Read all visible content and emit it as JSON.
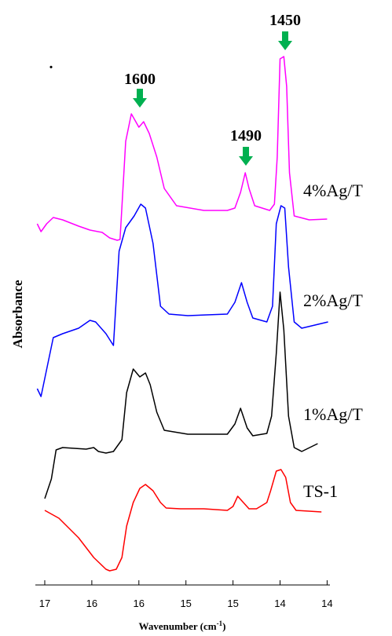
{
  "chart_data": {
    "type": "line",
    "ylabel": "Absorbance",
    "xlabel": {
      "text": "Wavenumber (cm",
      "sup": "-1",
      "end": ")"
    },
    "xlim": [
      17.1,
      13.97
    ],
    "ylim": [
      0,
      141
    ],
    "xticks": [
      17,
      {
        "value": 16.5,
        "label": "16"
      },
      16,
      {
        "value": 15.5,
        "label": "15"
      },
      15,
      {
        "value": 14.5,
        "label": "14"
      },
      14
    ],
    "annotations": [
      ".",
      "1600",
      "1490",
      "1450"
    ],
    "annotation_color": "#00b050",
    "series": [
      {
        "name": "4%Ag/T",
        "color": "#ff00ff",
        "x": [
          17.08,
          17.04,
          16.98,
          16.91,
          16.81,
          16.64,
          16.52,
          16.39,
          16.31,
          16.23,
          16.2,
          16.14,
          16.08,
          16.0,
          15.95,
          15.89,
          15.81,
          15.73,
          15.6,
          15.31,
          15.06,
          14.98,
          14.92,
          14.87,
          14.83,
          14.77,
          14.61,
          14.56,
          14.53,
          14.5,
          14.46,
          14.43,
          14.4,
          14.35,
          14.19,
          14.0
        ],
        "values": [
          92,
          90,
          92,
          93.6,
          93,
          91.4,
          90.4,
          89.8,
          88.4,
          87.8,
          88,
          113,
          120,
          116.6,
          118,
          115,
          109,
          101,
          96.6,
          95.4,
          95.4,
          96,
          100,
          105,
          101,
          96.6,
          95.4,
          97,
          109,
          134,
          134.6,
          127,
          105,
          94,
          93,
          93.2
        ]
      },
      {
        "name": "2%Ag/T",
        "color": "#0000ff",
        "x": [
          17.08,
          17.04,
          16.91,
          16.81,
          16.64,
          16.52,
          16.46,
          16.35,
          16.27,
          16.21,
          16.14,
          16.05,
          15.98,
          15.93,
          15.85,
          15.77,
          15.68,
          15.48,
          15.06,
          14.98,
          14.91,
          14.85,
          14.79,
          14.64,
          14.58,
          14.54,
          14.49,
          14.45,
          14.41,
          14.35,
          14.27,
          13.99
        ],
        "values": [
          50,
          48,
          63,
          64,
          65.4,
          67.4,
          67,
          64,
          61,
          85,
          91,
          94,
          97,
          96,
          87,
          71,
          69,
          68.6,
          69,
          72,
          77,
          72,
          68,
          67,
          71,
          92,
          96.6,
          96,
          81,
          67,
          65.4,
          67
        ]
      },
      {
        "name": "1%Ag/T",
        "color": "#000000",
        "x": [
          17.0,
          16.93,
          16.88,
          16.81,
          16.56,
          16.48,
          16.43,
          16.35,
          16.27,
          16.18,
          16.13,
          16.06,
          15.99,
          15.93,
          15.88,
          15.81,
          15.73,
          15.48,
          15.06,
          14.98,
          14.92,
          14.85,
          14.79,
          14.64,
          14.59,
          14.54,
          14.5,
          14.46,
          14.41,
          14.35,
          14.27,
          14.1
        ],
        "values": [
          22,
          27,
          34.4,
          35,
          34.6,
          35,
          34,
          33.6,
          34,
          37,
          49,
          55,
          53,
          54,
          51,
          44,
          39.4,
          38.4,
          38.4,
          41,
          45,
          40,
          38,
          38.6,
          43,
          59,
          74.6,
          65,
          43,
          35,
          34,
          36
        ]
      },
      {
        "name": "TS-1",
        "color": "#ff0000",
        "x": [
          17.0,
          16.85,
          16.64,
          16.48,
          16.35,
          16.31,
          16.24,
          16.18,
          16.13,
          16.06,
          15.99,
          15.93,
          15.85,
          15.77,
          15.71,
          15.56,
          15.31,
          15.06,
          15.0,
          14.95,
          14.89,
          14.83,
          14.75,
          14.64,
          14.6,
          14.54,
          14.49,
          14.44,
          14.39,
          14.33,
          14.06
        ],
        "values": [
          19,
          17,
          12,
          7,
          4,
          3.6,
          4,
          7,
          15,
          21,
          24.6,
          25.6,
          24,
          21,
          19.6,
          19.4,
          19.4,
          19,
          20,
          22.6,
          21,
          19.4,
          19.4,
          21,
          24,
          29,
          29.4,
          27.4,
          21,
          19,
          18.6
        ]
      }
    ]
  }
}
